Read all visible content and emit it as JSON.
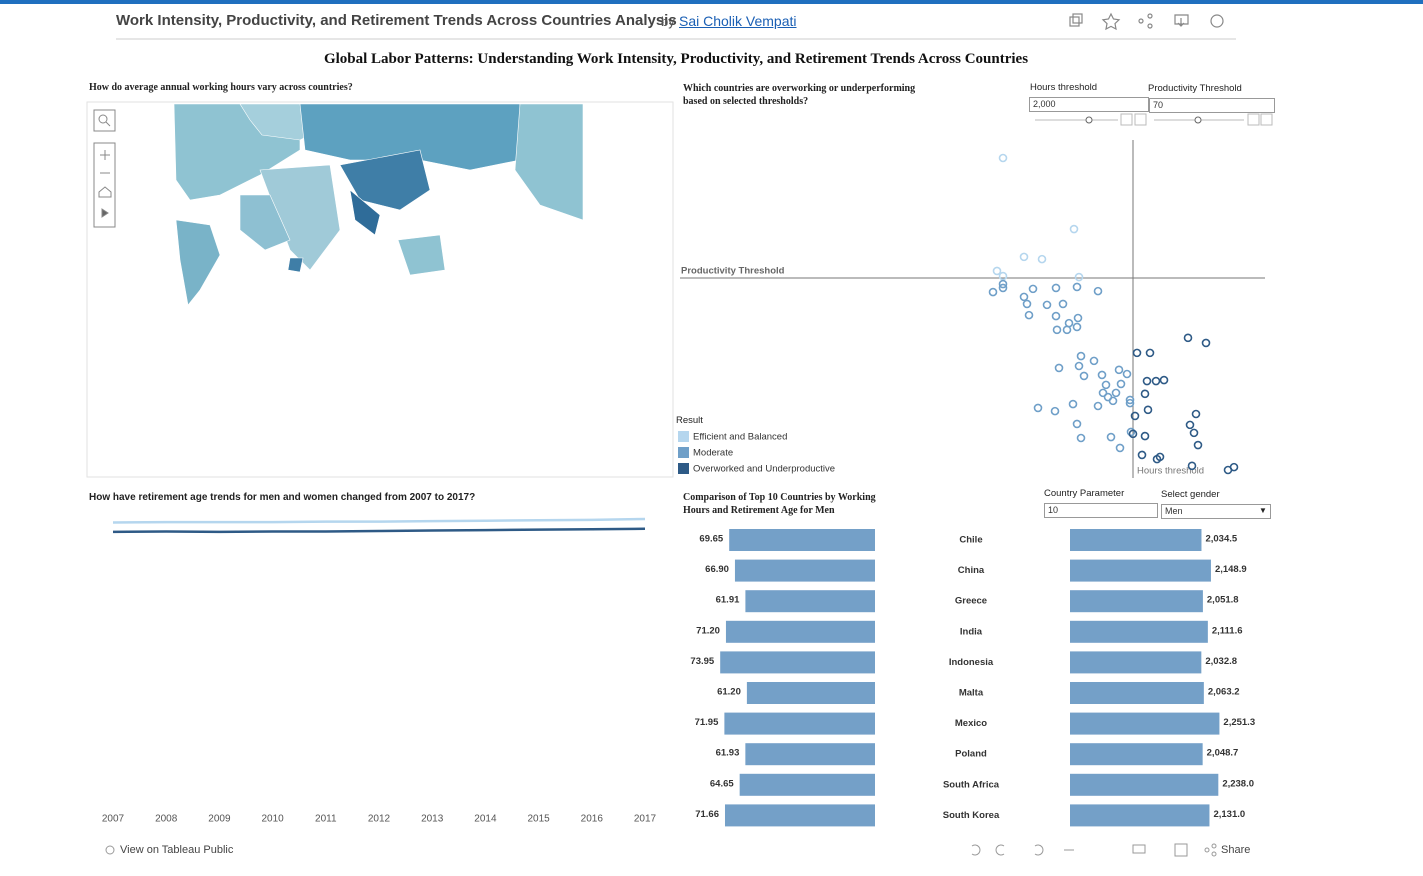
{
  "header": {
    "title": "Work Intensity, Productivity, and Retirement Trends Across Countries Analysis",
    "by": "by",
    "author": "Sai Cholik Vempati"
  },
  "dashboard_title": "Global Labor Patterns: Understanding Work Intensity, Productivity, and Retirement Trends Across Countries",
  "map_title": "How do average annual working hours vary across countries?",
  "controls": {
    "hours_label": "Hours threshold",
    "hours_value": "2,000",
    "productivity_label": "Productivity Threshold",
    "productivity_value": "70",
    "country_label": "Country Parameter",
    "country_value": "10",
    "gender_label": "Select gender",
    "gender_value": "Men"
  },
  "footer": {
    "view": "View on Tableau Public",
    "share": "Share"
  },
  "chart_data": [
    {
      "type": "scatter",
      "title": "Which countries are overworking or underperforming based on selected thresholds?",
      "legend_title": "Result",
      "xlim": [
        900,
        2330
      ],
      "ylim": [
        7.5,
        113.125
      ],
      "x_ref": 2000,
      "x_ref_label": "Hours threshold",
      "y_ref": 70,
      "y_ref_label": "Productivity Threshold",
      "series": [
        {
          "name": "Efficient and Balanced",
          "color": "#b5d6ee",
          "x": [
            1675,
            1852.5,
            1727.5,
            1772.5,
            1660,
            1675,
            1865
          ],
          "values": [
            107.5,
            85.3,
            76.6,
            75.9,
            72.2,
            70.6,
            70.3
          ]
        },
        {
          "name": "Moderate",
          "color": "#6f9fc8",
          "x": [
            1675,
            1675,
            1650,
            1750,
            1807.5,
            1860,
            1912.5,
            1727.5,
            1735,
            1785,
            1825,
            1740,
            1807.5,
            1840,
            1862.5,
            1810,
            1835,
            1860,
            1870,
            1815,
            1865,
            1902.5,
            1877.5,
            1922.5,
            1965,
            1985,
            1932.5,
            1970,
            1925,
            1937.5,
            1957.5,
            1912.5,
            1950,
            1992.5,
            1850,
            1762.5,
            1805,
            1992.5,
            1860,
            1870,
            1945,
            1967.5,
            1995
          ],
          "values": [
            68.1,
            66.9,
            65.6,
            66.6,
            66.9,
            67.2,
            65.9,
            64.1,
            61.9,
            61.6,
            61.9,
            58.4,
            58.1,
            55.9,
            57.5,
            53.8,
            53.8,
            54.7,
            45.6,
            41.9,
            42.5,
            44.1,
            39.4,
            39.7,
            41.3,
            40.0,
            36.6,
            36.9,
            34.1,
            32.8,
            34.1,
            30.0,
            31.6,
            31.9,
            30.6,
            29.4,
            28.4,
            30.9,
            24.4,
            20.0,
            20.3,
            16.9,
            21.9
          ]
        },
        {
          "name": "Overworked and Underproductive",
          "color": "#2e5a86",
          "x": [
            2010,
            2042.5,
            2137.5,
            2182.5,
            2035,
            2057.5,
            2077.5,
            2030,
            2037.5,
            2005,
            2157.5,
            2142.5,
            2152.5,
            2030,
            2000,
            2162.5,
            2022.5,
            2067.5,
            2060,
            2147.5,
            2237.5,
            2252.5
          ],
          "values": [
            46.6,
            46.6,
            51.3,
            49.7,
            37.8,
            37.8,
            38.1,
            33.8,
            28.8,
            26.9,
            27.5,
            24.1,
            21.6,
            20.6,
            21.3,
            17.8,
            14.7,
            14.1,
            13.4,
            11.3,
            10.0,
            10.9
          ]
        }
      ]
    },
    {
      "type": "line",
      "title": "How have retirement age trends for men and women changed from 2007 to 2017?",
      "categories": [
        "2007",
        "2008",
        "2009",
        "2010",
        "2011",
        "2012",
        "2013",
        "2014",
        "2015",
        "2016",
        "2017"
      ],
      "ylim": [
        0,
        66
      ],
      "series": [
        {
          "color": "#b5d6ee",
          "values": [
            63.2,
            63.3,
            63.3,
            63.3,
            63.4,
            63.4,
            63.5,
            63.6,
            63.7,
            63.8,
            64.0
          ]
        },
        {
          "color": "#2e5a86",
          "values": [
            61.1,
            61.2,
            61.1,
            61.2,
            61.2,
            61.3,
            61.4,
            61.5,
            61.6,
            61.7,
            61.8
          ]
        }
      ]
    },
    {
      "type": "bar",
      "title": "Comparison of Top 10 Countries by Working Hours and Retirement Age for Men",
      "categories": [
        "Chile",
        "China",
        "Greece",
        "India",
        "Indonesia",
        "Malta",
        "Mexico",
        "Poland",
        "South Africa",
        "South Korea"
      ],
      "series": [
        {
          "color": "#74a0c8",
          "xlim": [
            0,
            75
          ],
          "values": [
            69.65,
            66.9,
            61.91,
            71.2,
            73.95,
            61.2,
            71.95,
            61.93,
            64.65,
            71.66
          ],
          "value_labels": [
            "69.65",
            "66.90",
            "61.91",
            "71.20",
            "73.95",
            "61.20",
            "71.95",
            "61.93",
            "64.65",
            "71.66"
          ]
        },
        {
          "color": "#74a0c8",
          "xlim": [
            446,
            2500
          ],
          "values": [
            2034.5,
            2148.9,
            2051.8,
            2111.6,
            2032.8,
            2063.2,
            2251.3,
            2048.7,
            2238.0,
            2131.0
          ],
          "value_labels": [
            "2,034.5",
            "2,148.9",
            "2,051.8",
            "2,111.6",
            "2,032.8",
            "2,063.2",
            "2,251.3",
            "2,048.7",
            "2,238.0",
            "2,131.0"
          ]
        }
      ]
    }
  ]
}
